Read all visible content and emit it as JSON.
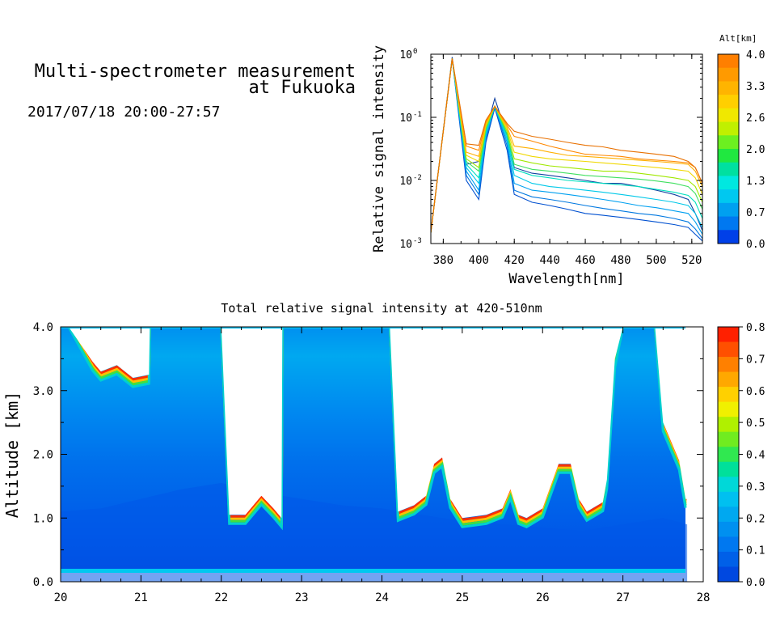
{
  "header": {
    "title_line1": "Multi-spectrometer measurement",
    "title_line2": "at Fukuoka",
    "datetime": "2017/07/18 20:00-27:57"
  },
  "chart_data": [
    {
      "type": "line",
      "xlabel": "Wavelength[nm]",
      "ylabel": "Relative signal intensity",
      "xlim": [
        373,
        526
      ],
      "ylim": [
        0.001,
        1
      ],
      "yscale": "log",
      "xticks": [
        380,
        400,
        420,
        440,
        460,
        480,
        500,
        520
      ],
      "yticks": [
        {
          "value": 1,
          "base": "10",
          "exp": "0"
        },
        {
          "value": 0.1,
          "base": "10",
          "exp": "-1"
        },
        {
          "value": 0.01,
          "base": "10",
          "exp": "-2"
        },
        {
          "value": 0.001,
          "base": "10",
          "exp": "-3"
        }
      ],
      "colorbar": {
        "title": "Alt[km]",
        "labels": [
          "4.0",
          "3.3",
          "2.6",
          "2.0",
          "1.3",
          "0.7",
          "0.0"
        ],
        "colors": [
          "#ff7f00",
          "#ff9a00",
          "#ffb400",
          "#ffcf00",
          "#f0e800",
          "#c0f000",
          "#6cf020",
          "#20e840",
          "#00e0a0",
          "#00e8e0",
          "#00c8f0",
          "#00a0f0",
          "#0078f0",
          "#0040e8"
        ]
      },
      "x": [
        373,
        385,
        393,
        400,
        404,
        409,
        416,
        420,
        430,
        440,
        450,
        460,
        470,
        480,
        490,
        500,
        510,
        518,
        522,
        526
      ],
      "series": [
        {
          "color": "#1040a0",
          "values": [
            0.0015,
            0.9,
            0.018,
            0.02,
            0.06,
            0.2,
            0.05,
            0.016,
            0.013,
            0.012,
            0.011,
            0.01,
            0.009,
            0.009,
            0.008,
            0.007,
            0.006,
            0.005,
            0.003,
            0.0016
          ]
        },
        {
          "color": "#0050d0",
          "values": [
            0.0015,
            0.85,
            0.01,
            0.005,
            0.04,
            0.14,
            0.03,
            0.006,
            0.0045,
            0.004,
            0.0035,
            0.003,
            0.0028,
            0.0026,
            0.0024,
            0.0022,
            0.002,
            0.0018,
            0.0014,
            0.0011
          ]
        },
        {
          "color": "#0078e0",
          "values": [
            0.0015,
            0.85,
            0.012,
            0.006,
            0.045,
            0.15,
            0.035,
            0.007,
            0.0055,
            0.005,
            0.0045,
            0.004,
            0.0036,
            0.0033,
            0.003,
            0.0028,
            0.0025,
            0.0022,
            0.0017,
            0.0012
          ]
        },
        {
          "color": "#00a0f0",
          "values": [
            0.0015,
            0.85,
            0.014,
            0.007,
            0.05,
            0.15,
            0.04,
            0.009,
            0.007,
            0.0065,
            0.006,
            0.0055,
            0.005,
            0.0045,
            0.004,
            0.0037,
            0.0033,
            0.003,
            0.0022,
            0.0014
          ]
        },
        {
          "color": "#00c8e8",
          "values": [
            0.0015,
            0.85,
            0.016,
            0.009,
            0.055,
            0.15,
            0.045,
            0.012,
            0.009,
            0.008,
            0.0075,
            0.007,
            0.0065,
            0.006,
            0.0055,
            0.005,
            0.0045,
            0.004,
            0.003,
            0.0018
          ]
        },
        {
          "color": "#00e0c0",
          "values": [
            0.0015,
            0.85,
            0.018,
            0.011,
            0.06,
            0.15,
            0.05,
            0.015,
            0.012,
            0.011,
            0.01,
            0.0095,
            0.009,
            0.0085,
            0.008,
            0.0072,
            0.0065,
            0.0058,
            0.0045,
            0.0025
          ]
        },
        {
          "color": "#40e060",
          "values": [
            0.0015,
            0.85,
            0.02,
            0.014,
            0.065,
            0.15,
            0.055,
            0.018,
            0.015,
            0.014,
            0.013,
            0.012,
            0.0115,
            0.011,
            0.0105,
            0.0098,
            0.009,
            0.008,
            0.0062,
            0.0035
          ]
        },
        {
          "color": "#a0e800",
          "values": [
            0.0015,
            0.85,
            0.022,
            0.016,
            0.07,
            0.15,
            0.06,
            0.022,
            0.019,
            0.017,
            0.016,
            0.015,
            0.014,
            0.014,
            0.013,
            0.012,
            0.011,
            0.01,
            0.008,
            0.0045
          ]
        },
        {
          "color": "#f0d800",
          "values": [
            0.0015,
            0.85,
            0.025,
            0.02,
            0.075,
            0.15,
            0.065,
            0.028,
            0.024,
            0.022,
            0.021,
            0.02,
            0.019,
            0.018,
            0.017,
            0.016,
            0.015,
            0.014,
            0.011,
            0.006
          ]
        },
        {
          "color": "#ffb000",
          "values": [
            0.0015,
            0.85,
            0.028,
            0.024,
            0.08,
            0.15,
            0.07,
            0.035,
            0.032,
            0.028,
            0.025,
            0.024,
            0.023,
            0.022,
            0.021,
            0.02,
            0.019,
            0.018,
            0.014,
            0.008
          ]
        },
        {
          "color": "#ff8800",
          "values": [
            0.0015,
            0.85,
            0.035,
            0.03,
            0.085,
            0.15,
            0.075,
            0.05,
            0.042,
            0.035,
            0.03,
            0.026,
            0.025,
            0.024,
            0.022,
            0.021,
            0.02,
            0.019,
            0.016,
            0.009
          ]
        },
        {
          "color": "#e87000",
          "values": [
            0.0015,
            0.85,
            0.038,
            0.036,
            0.09,
            0.15,
            0.08,
            0.06,
            0.05,
            0.045,
            0.04,
            0.036,
            0.034,
            0.03,
            0.028,
            0.026,
            0.024,
            0.02,
            0.016,
            0.009
          ]
        }
      ]
    },
    {
      "type": "heatmap",
      "title": "Total relative signal intensity at 420-510nm",
      "ylabel": "Altitude [km]",
      "xlim": [
        20,
        28
      ],
      "ylim": [
        0,
        4
      ],
      "xticks": [
        "20",
        "21",
        "22",
        "23",
        "24",
        "25",
        "26",
        "27",
        "28"
      ],
      "yticks": [
        "0.0",
        "1.0",
        "2.0",
        "3.0",
        "4.0"
      ],
      "colorbar": {
        "labels": [
          "0.8",
          "0.7",
          "0.6",
          "0.5",
          "0.4",
          "0.3",
          "0.2",
          "0.1",
          "0.0"
        ],
        "colors": [
          "#ff2000",
          "#ff5000",
          "#ff8000",
          "#ffa800",
          "#ffd000",
          "#f0f000",
          "#b0f000",
          "#70ec20",
          "#30e850",
          "#00e09a",
          "#00d8d8",
          "#00c0f0",
          "#00a8f0",
          "#0090f0",
          "#0078f0",
          "#0060e8",
          "#0048e0"
        ]
      },
      "cloud_base_km": {
        "time": [
          20.0,
          20.1,
          20.4,
          20.5,
          20.7,
          20.9,
          21.1,
          21.11,
          22.0,
          22.1,
          22.3,
          22.5,
          22.65,
          22.75,
          22.76,
          24.1,
          24.2,
          24.4,
          24.55,
          24.65,
          24.75,
          24.85,
          25.0,
          25.3,
          25.5,
          25.6,
          25.7,
          25.8,
          26.0,
          26.2,
          26.35,
          26.45,
          26.55,
          26.75,
          26.8,
          26.9,
          27.0,
          27.4,
          27.5,
          27.7,
          27.78
        ],
        "base": [
          4.0,
          4.0,
          3.45,
          3.3,
          3.4,
          3.2,
          3.25,
          4.0,
          4.0,
          1.05,
          1.05,
          1.35,
          1.15,
          1.0,
          4.0,
          4.0,
          1.1,
          1.2,
          1.35,
          1.85,
          1.95,
          1.3,
          1.0,
          1.05,
          1.15,
          1.45,
          1.05,
          1.0,
          1.15,
          1.85,
          1.85,
          1.3,
          1.1,
          1.25,
          1.6,
          3.5,
          4.0,
          4.0,
          2.5,
          1.9,
          1.3
        ]
      },
      "boundary_layer_km": {
        "time": [
          20.0,
          20.5,
          21.0,
          21.5,
          22.0,
          22.5,
          23.0,
          23.5,
          24.0,
          24.5,
          25.0,
          25.5,
          26.0,
          26.5,
          27.0,
          27.5,
          27.8
        ],
        "top": [
          1.1,
          1.15,
          1.3,
          1.45,
          1.55,
          1.4,
          1.3,
          1.2,
          1.15,
          1.05,
          0.95,
          0.9,
          0.85,
          0.8,
          0.9,
          1.0,
          0.9
        ]
      }
    }
  ]
}
